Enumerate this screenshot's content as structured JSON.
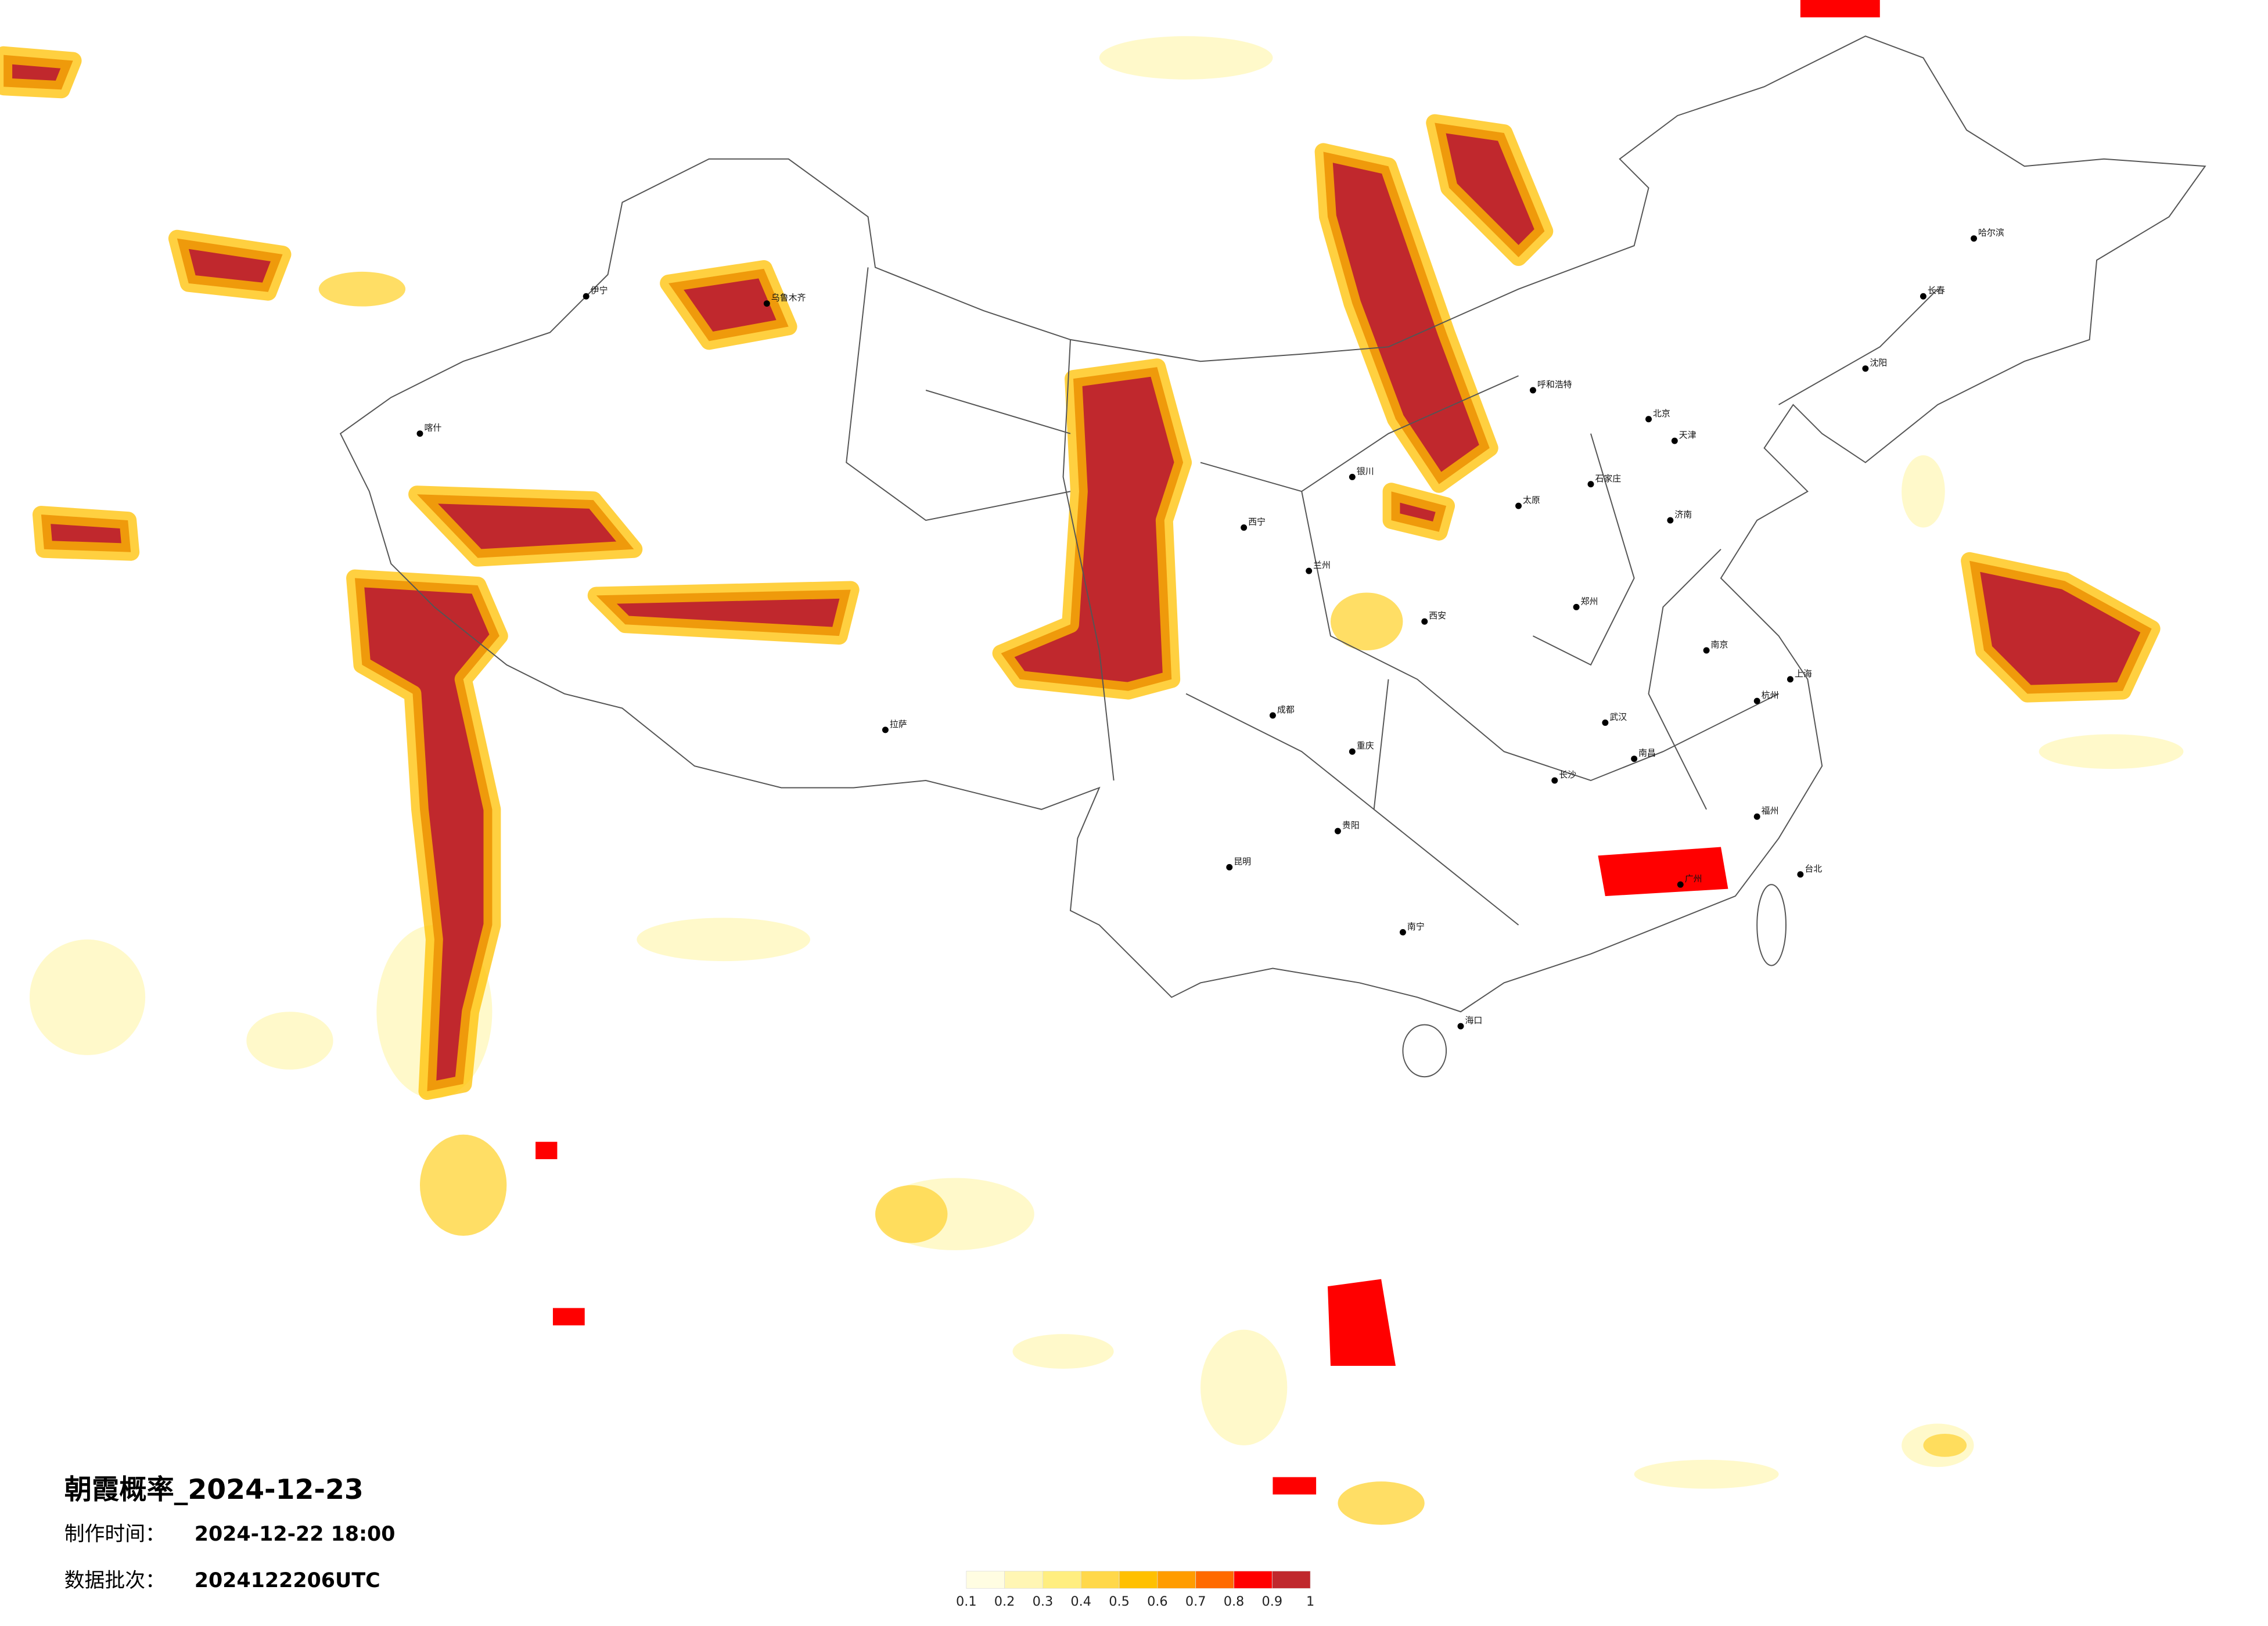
{
  "title": "朝霞概率_2024-12-23",
  "make_time": {
    "label": "制作时间：",
    "value": "2024-12-22 18:00"
  },
  "batch": {
    "label": "数据批次：",
    "value": "2024122206UTC"
  },
  "legend": {
    "ticks": [
      0.1,
      0.2,
      0.3,
      0.4,
      0.5,
      0.6,
      0.7,
      0.8,
      0.9,
      1
    ],
    "colors": [
      "#fffde2",
      "#fff6b4",
      "#ffee80",
      "#ffd84a",
      "#ffc000",
      "#ff9c00",
      "#ff6a00",
      "#ff0000",
      "#c0282d"
    ]
  },
  "cities": [
    "北京",
    "天津",
    "上海",
    "广州",
    "重庆",
    "成都",
    "武汉",
    "西安",
    "兰州",
    "西宁",
    "拉萨",
    "乌鲁木齐",
    "哈尔滨",
    "长春",
    "沈阳",
    "呼和浩特",
    "银川",
    "南宁",
    "昆明",
    "贵阳",
    "长沙",
    "南昌",
    "福州",
    "杭州",
    "南京",
    "济南",
    "郑州",
    "太原",
    "石家庄",
    "海口",
    "台北",
    "喀什",
    "伊宁"
  ]
}
